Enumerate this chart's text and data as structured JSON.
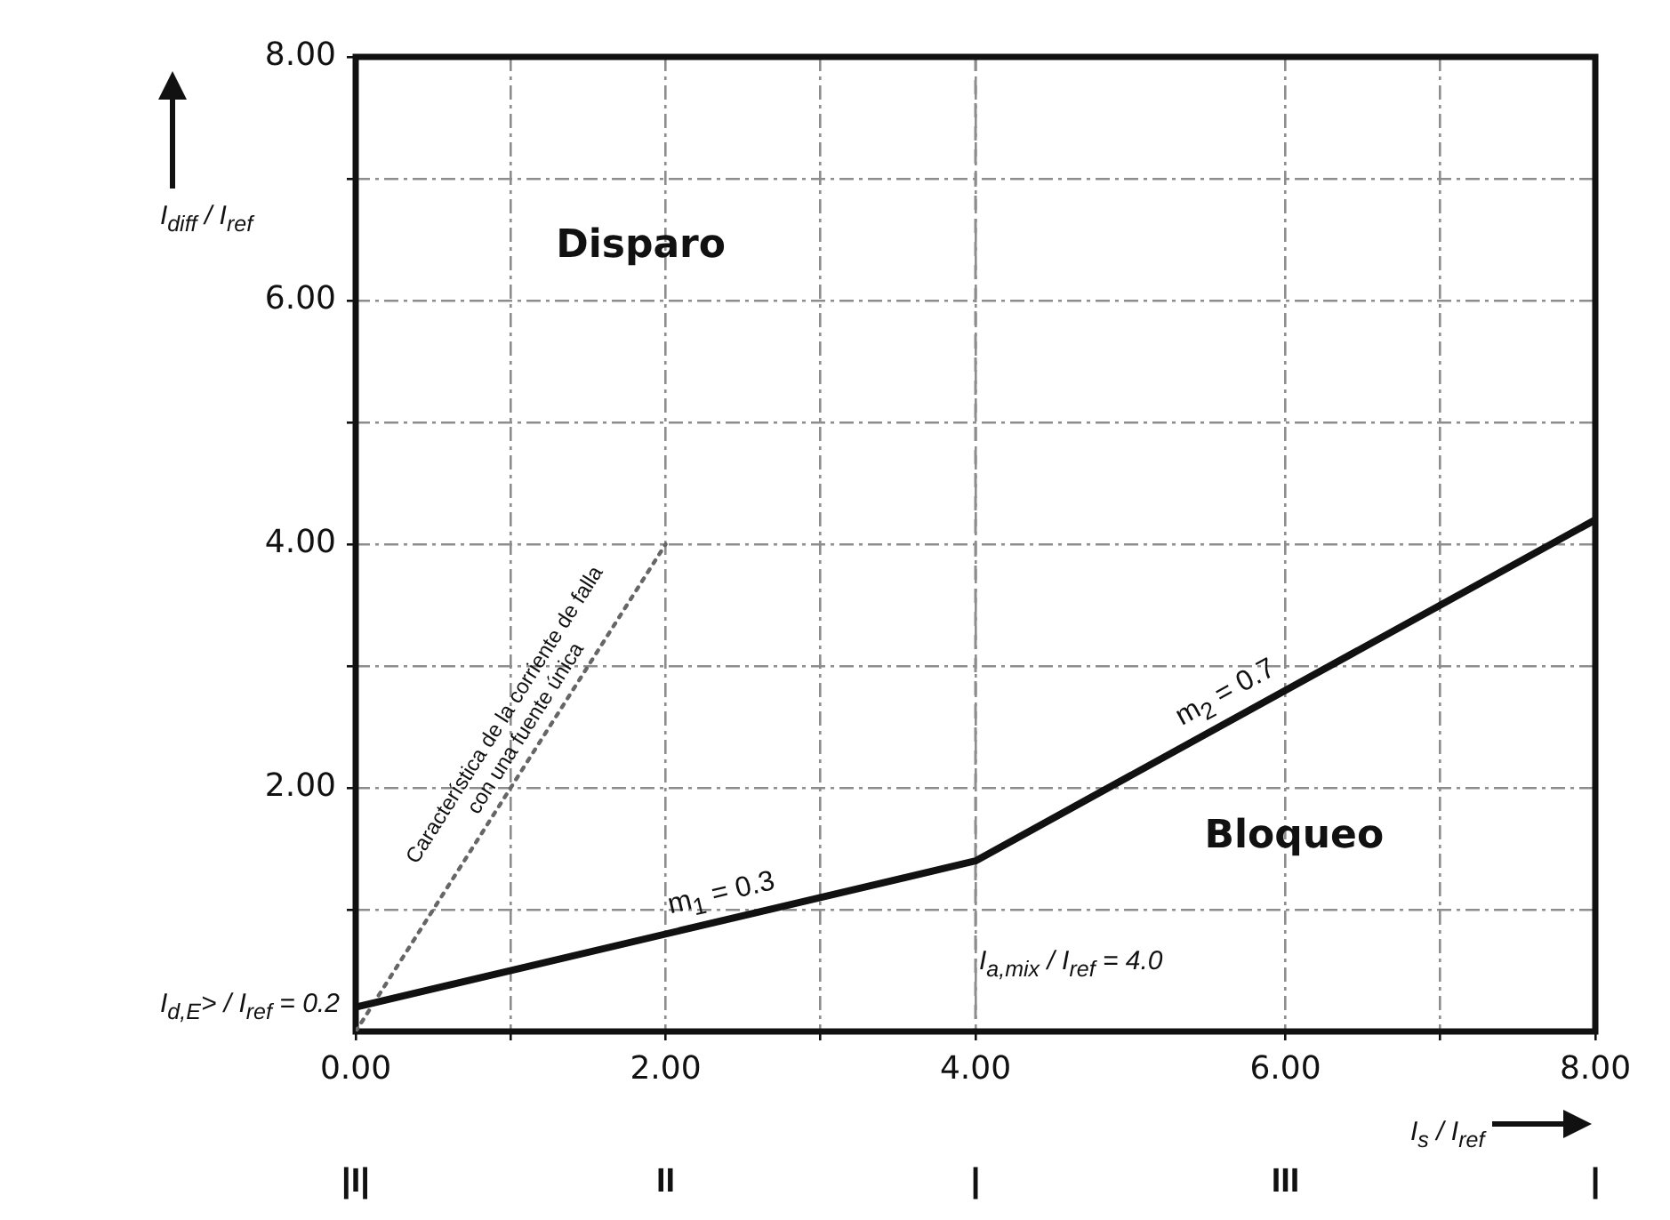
{
  "chart_data": {
    "type": "line",
    "xlabel": "I$_{s}$ / I$_{ref}$",
    "ylabel": "I$_{diff}$ / I$_{ref}$",
    "xlim": [
      0,
      8
    ],
    "ylim": [
      0,
      8
    ],
    "xticks": [
      {
        "value": 0,
        "label": "0.00"
      },
      {
        "value": 1,
        "label": null
      },
      {
        "value": 2,
        "label": "2.00"
      },
      {
        "value": 3,
        "label": null
      },
      {
        "value": 4,
        "label": "4.00"
      },
      {
        "value": 6,
        "label": "6.00"
      },
      {
        "value": 7,
        "label": null
      },
      {
        "value": 8,
        "label": "8.00"
      }
    ],
    "yticks": [
      {
        "value": 1,
        "label": null
      },
      {
        "value": 2,
        "label": "2.00"
      },
      {
        "value": 3,
        "label": null
      },
      {
        "value": 4,
        "label": "4.00"
      },
      {
        "value": 5,
        "label": null
      },
      {
        "value": 6,
        "label": "6.00"
      },
      {
        "value": 7,
        "label": null
      },
      {
        "value": 8,
        "label": "8.00"
      }
    ],
    "series": [
      {
        "type": "line",
        "x": [
          0,
          4,
          8
        ],
        "values": [
          0.2,
          1.4,
          4.2
        ],
        "color": "#111111",
        "line_style": "solid"
      },
      {
        "type": "line",
        "x": [
          0,
          2
        ],
        "values": [
          0,
          4
        ],
        "color": "#666666",
        "line_style": "dotted"
      }
    ],
    "grid": true,
    "marker": "none",
    "ref_lines": [
      {
        "axis": "x",
        "value": 4,
        "label": "I$_{a,mix}$ / I$_{ref}$ = 4.0",
        "color": "#8d8d8d",
        "line_style": "dashed"
      }
    ],
    "annotations": [
      {
        "text": "m$_{1}$ = 0.3",
        "x": 2.4,
        "y": 0.92
      },
      {
        "text": "m$_{2}$ = 0.7",
        "x": 5.7,
        "y": 2.59
      },
      {
        "text": "Característica de la corriente de falla\ncon una fuente única",
        "x": 1.2,
        "y": 2.4
      },
      {
        "text": "I$_{d,E}$> / I$_{ref}$ = 0.2",
        "x": 0,
        "y": 0.2
      },
      "Disparo",
      "Bloqueo",
      "|I|",
      "II",
      "|",
      "III",
      "|"
    ]
  }
}
